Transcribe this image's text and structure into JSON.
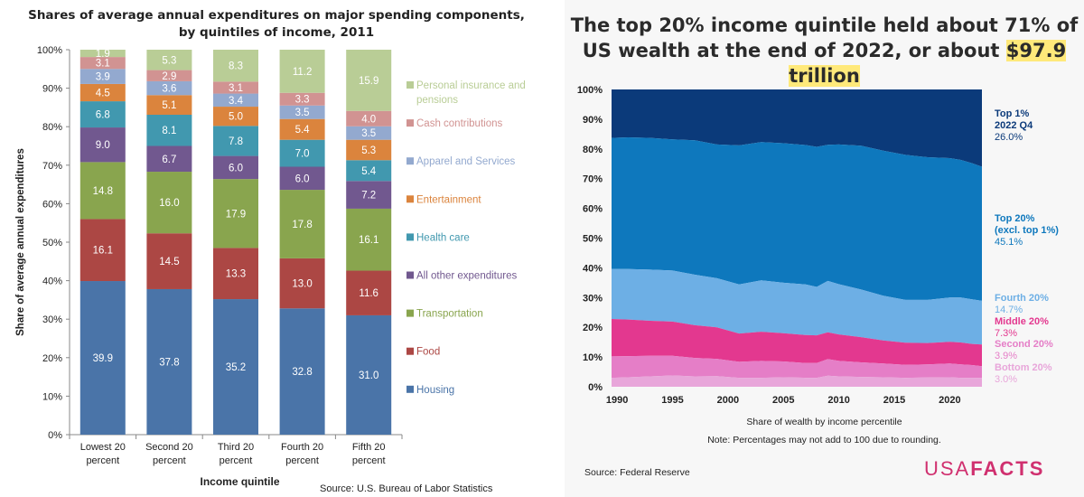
{
  "left_chart": {
    "title": "Shares of average annual expenditures on major spending components, by quintiles of income, 2011",
    "source": "Source: U.S. Bureau of Labor Statistics"
  },
  "right_chart": {
    "title_pre": "The top 20% income quintile held about 71% of US wealth at the end of 2022, or about ",
    "title_highlight": "$97.9 trillion",
    "note": "Note: Percentages may not add to 100 due to rounding.",
    "source": "Source: Federal Reserve",
    "logo_light": "USA",
    "logo_bold": "FACTS"
  },
  "chart_data": [
    {
      "type": "bar",
      "stacked": true,
      "title": "Shares of average annual expenditures on major spending components, by quintiles of income, 2011",
      "xlabel": "Income quintile",
      "ylabel": "Share of average annual expenditures",
      "ylim": [
        0,
        100
      ],
      "yticks": [
        "0%",
        "10%",
        "20%",
        "30%",
        "40%",
        "50%",
        "60%",
        "70%",
        "80%",
        "90%",
        "100%"
      ],
      "categories": [
        "Lowest 20 percent",
        "Second 20 percent",
        "Third 20 percent",
        "Fourth 20 percent",
        "Fifth 20 percent"
      ],
      "category_lines": [
        [
          "Lowest 20",
          "percent"
        ],
        [
          "Second 20",
          "percent"
        ],
        [
          "Third 20",
          "percent"
        ],
        [
          "Fourth 20",
          "percent"
        ],
        [
          "Fifth 20",
          "percent"
        ]
      ],
      "legend_position": "right",
      "series": [
        {
          "name": "Housing",
          "color": "#4a74a8",
          "values": [
            39.9,
            37.8,
            35.2,
            32.8,
            31.0
          ]
        },
        {
          "name": "Food",
          "color": "#ac4744",
          "values": [
            16.1,
            14.5,
            13.3,
            13.0,
            11.6
          ]
        },
        {
          "name": "Transportation",
          "color": "#89a54e",
          "values": [
            14.8,
            16.0,
            17.9,
            17.8,
            16.1
          ]
        },
        {
          "name": "All other expenditures",
          "color": "#71588f",
          "values": [
            9.0,
            6.7,
            6.0,
            6.0,
            7.2
          ]
        },
        {
          "name": "Health care",
          "color": "#4198af",
          "values": [
            6.8,
            8.1,
            7.8,
            7.0,
            5.4
          ]
        },
        {
          "name": "Entertainment",
          "color": "#db843d",
          "values": [
            4.5,
            5.1,
            5.0,
            5.4,
            5.3
          ]
        },
        {
          "name": "Apparel and Services",
          "color": "#93a9cf",
          "values": [
            3.9,
            3.6,
            3.4,
            3.5,
            3.5
          ]
        },
        {
          "name": "Cash contributions",
          "color": "#d19392",
          "values": [
            3.1,
            2.9,
            3.1,
            3.3,
            4.0
          ]
        },
        {
          "name": "Personal insurance and pensions",
          "color": "#b9cd96",
          "values": [
            1.9,
            5.3,
            8.3,
            11.2,
            15.9
          ]
        }
      ],
      "legend_lines": [
        [
          "Personal insurance and",
          "pensions"
        ],
        [
          "Cash contributions"
        ],
        [
          "Apparel and Services"
        ],
        [
          "Entertainment"
        ],
        [
          "Health care"
        ],
        [
          "All other expenditures"
        ],
        [
          "Transportation"
        ],
        [
          "Food"
        ],
        [
          "Housing"
        ]
      ],
      "legend_colors": [
        "#b9cd96",
        "#d19392",
        "#93a9cf",
        "#db843d",
        "#4198af",
        "#71588f",
        "#89a54e",
        "#ac4744",
        "#4a74a8"
      ]
    },
    {
      "type": "area",
      "stacked": true,
      "title": "The top 20% income quintile held about 71% of US wealth at the end of 2022, or about $97.9 trillion",
      "xlabel": "Share of wealth by income percentile",
      "ylim": [
        0,
        100
      ],
      "xlim": [
        1989.5,
        2022.9
      ],
      "xticks": [
        1990,
        1995,
        2000,
        2005,
        2010,
        2015,
        2020
      ],
      "yticks": [
        "0%",
        "10%",
        "20%",
        "30%",
        "40%",
        "50%",
        "60%",
        "70%",
        "80%",
        "90%",
        "100%"
      ],
      "x": [
        1989.5,
        1991,
        1993,
        1995,
        1997,
        1999,
        2001,
        2003,
        2005,
        2007,
        2008,
        2009,
        2010,
        2012,
        2014,
        2016,
        2018,
        2020,
        2021,
        2022,
        2022.9
      ],
      "series": [
        {
          "name": "Bottom 20%",
          "color": "#e8a6da",
          "values": [
            3.0,
            3.2,
            3.5,
            3.8,
            3.5,
            3.6,
            3.0,
            3.0,
            3.2,
            3.0,
            3.0,
            3.7,
            3.5,
            3.3,
            3.2,
            3.0,
            3.1,
            3.2,
            3.0,
            3.0,
            3.0
          ]
        },
        {
          "name": "Second 20%",
          "color": "#e57ec7",
          "values": [
            7.2,
            7.1,
            6.9,
            6.6,
            6.2,
            5.8,
            5.4,
            5.7,
            5.3,
            5.0,
            5.0,
            5.6,
            5.2,
            4.9,
            4.6,
            4.4,
            4.4,
            4.6,
            4.5,
            4.3,
            3.9
          ]
        },
        {
          "name": "Middle 20%",
          "color": "#e3388f",
          "values": [
            12.6,
            12.3,
            11.8,
            11.5,
            11.0,
            10.6,
            9.5,
            9.8,
            9.5,
            9.4,
            9.3,
            9.0,
            8.9,
            8.5,
            7.8,
            7.4,
            7.2,
            7.3,
            7.4,
            7.1,
            7.3
          ]
        },
        {
          "name": "Fourth 20%",
          "color": "#6dafe5",
          "values": [
            16.8,
            17.0,
            17.2,
            17.2,
            17.0,
            16.5,
            16.5,
            17.3,
            17.0,
            17.0,
            16.3,
            17.3,
            16.9,
            16.0,
            15.0,
            14.4,
            14.5,
            14.9,
            15.1,
            15.0,
            14.7
          ]
        },
        {
          "name": "Top 20% (excl. top 1%)",
          "color": "#0e78bd",
          "values": [
            44.1,
            44.3,
            44.3,
            44.1,
            45.2,
            45.0,
            46.8,
            46.5,
            46.9,
            46.9,
            47.1,
            45.8,
            47.0,
            48.4,
            48.8,
            48.8,
            48.0,
            46.9,
            46.3,
            45.8,
            45.1
          ]
        },
        {
          "name": "Top 1%",
          "color": "#0b3a7a",
          "values": [
            16.3,
            16.1,
            16.3,
            16.8,
            17.1,
            18.5,
            18.8,
            17.7,
            18.1,
            18.7,
            19.3,
            18.6,
            18.5,
            18.9,
            20.6,
            22.0,
            22.8,
            23.1,
            23.7,
            24.8,
            26.0
          ]
        }
      ],
      "labels": [
        {
          "lines": [
            "Top 1%",
            "2022 Q4"
          ],
          "value": "26.0%",
          "color": "#0b3a7a"
        },
        {
          "lines": [
            "Top 20%",
            "(excl. top 1%)"
          ],
          "value": "45.1%",
          "color": "#0e78bd"
        },
        {
          "lines": [
            "Fourth 20%"
          ],
          "value": "14.7%",
          "color": "#6dafe5"
        },
        {
          "lines": [
            "Middle 20%"
          ],
          "value": "7.3%",
          "color": "#e3388f"
        },
        {
          "lines": [
            "Second 20%"
          ],
          "value": "3.9%",
          "color": "#e57ec7"
        },
        {
          "lines": [
            "Bottom 20%"
          ],
          "value": "3.0%",
          "color": "#e8a6da"
        }
      ]
    }
  ]
}
